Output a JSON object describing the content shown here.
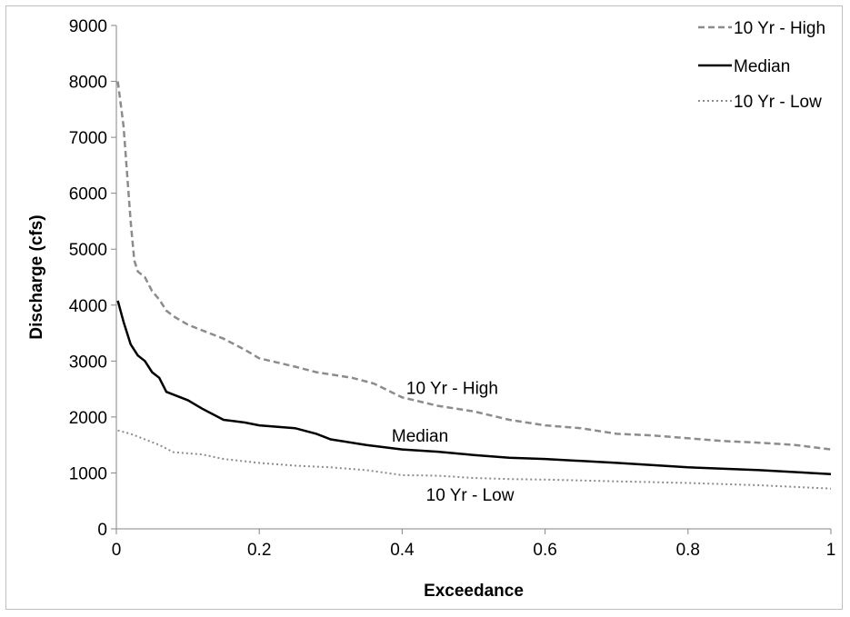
{
  "chart_data": {
    "type": "line",
    "title": "",
    "xlabel": "Exceedance",
    "ylabel": "Discharge (cfs)",
    "xlim": [
      0,
      1
    ],
    "ylim": [
      0,
      9000
    ],
    "xticks": [
      0,
      0.2,
      0.4,
      0.6,
      0.8,
      1
    ],
    "xtick_labels": [
      "0",
      "0.2",
      "0.4",
      "0.6",
      "0.8",
      "1"
    ],
    "yticks": [
      0,
      1000,
      2000,
      3000,
      4000,
      5000,
      6000,
      7000,
      8000,
      9000
    ],
    "ytick_labels": [
      "0",
      "1000",
      "2000",
      "3000",
      "4000",
      "5000",
      "6000",
      "7000",
      "8000",
      "9000"
    ],
    "grid": false,
    "legend_position": "top-right",
    "series": [
      {
        "name": "10 Yr - High",
        "style": "dashed",
        "color": "#8c8c8c",
        "points": [
          [
            0.002,
            8000
          ],
          [
            0.01,
            7200
          ],
          [
            0.02,
            5500
          ],
          [
            0.025,
            4800
          ],
          [
            0.03,
            4600
          ],
          [
            0.04,
            4500
          ],
          [
            0.05,
            4250
          ],
          [
            0.06,
            4100
          ],
          [
            0.07,
            3900
          ],
          [
            0.08,
            3800
          ],
          [
            0.1,
            3650
          ],
          [
            0.12,
            3550
          ],
          [
            0.15,
            3400
          ],
          [
            0.18,
            3200
          ],
          [
            0.2,
            3050
          ],
          [
            0.25,
            2900
          ],
          [
            0.28,
            2800
          ],
          [
            0.33,
            2700
          ],
          [
            0.36,
            2600
          ],
          [
            0.4,
            2350
          ],
          [
            0.45,
            2200
          ],
          [
            0.5,
            2100
          ],
          [
            0.55,
            1950
          ],
          [
            0.6,
            1850
          ],
          [
            0.65,
            1800
          ],
          [
            0.7,
            1700
          ],
          [
            0.75,
            1670
          ],
          [
            0.8,
            1620
          ],
          [
            0.85,
            1570
          ],
          [
            0.9,
            1540
          ],
          [
            0.95,
            1500
          ],
          [
            1.0,
            1420
          ]
        ]
      },
      {
        "name": "Median",
        "style": "solid",
        "color": "#000000",
        "points": [
          [
            0.002,
            4080
          ],
          [
            0.01,
            3700
          ],
          [
            0.02,
            3300
          ],
          [
            0.03,
            3100
          ],
          [
            0.04,
            3000
          ],
          [
            0.05,
            2800
          ],
          [
            0.06,
            2700
          ],
          [
            0.07,
            2450
          ],
          [
            0.08,
            2400
          ],
          [
            0.1,
            2300
          ],
          [
            0.12,
            2150
          ],
          [
            0.15,
            1950
          ],
          [
            0.18,
            1900
          ],
          [
            0.2,
            1850
          ],
          [
            0.25,
            1800
          ],
          [
            0.28,
            1700
          ],
          [
            0.3,
            1600
          ],
          [
            0.35,
            1500
          ],
          [
            0.4,
            1420
          ],
          [
            0.45,
            1380
          ],
          [
            0.5,
            1320
          ],
          [
            0.55,
            1270
          ],
          [
            0.6,
            1250
          ],
          [
            0.7,
            1180
          ],
          [
            0.8,
            1100
          ],
          [
            0.9,
            1050
          ],
          [
            1.0,
            980
          ]
        ]
      },
      {
        "name": "10 Yr - Low",
        "style": "dotted",
        "color": "#8c8c8c",
        "points": [
          [
            0.002,
            1760
          ],
          [
            0.02,
            1700
          ],
          [
            0.04,
            1600
          ],
          [
            0.06,
            1500
          ],
          [
            0.08,
            1370
          ],
          [
            0.1,
            1350
          ],
          [
            0.12,
            1330
          ],
          [
            0.15,
            1250
          ],
          [
            0.2,
            1180
          ],
          [
            0.25,
            1130
          ],
          [
            0.3,
            1100
          ],
          [
            0.35,
            1050
          ],
          [
            0.4,
            960
          ],
          [
            0.45,
            950
          ],
          [
            0.5,
            910
          ],
          [
            0.55,
            890
          ],
          [
            0.6,
            880
          ],
          [
            0.7,
            850
          ],
          [
            0.8,
            820
          ],
          [
            0.9,
            780
          ],
          [
            1.0,
            720
          ]
        ]
      }
    ],
    "annotations": [
      {
        "text": "10 Yr - High",
        "x": 0.47,
        "y": 2530
      },
      {
        "text": "Median",
        "x": 0.425,
        "y": 1670
      },
      {
        "text": "10 Yr - Low",
        "x": 0.495,
        "y": 620
      }
    ]
  }
}
